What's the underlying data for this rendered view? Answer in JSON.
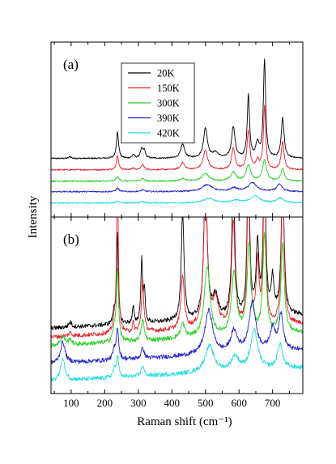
{
  "chart_data": {
    "type": "line",
    "xlabel": "Raman shift (cm⁻¹)",
    "ylabel": "Intensity",
    "xlim": [
      40,
      790
    ],
    "xticks": [
      100,
      200,
      300,
      400,
      500,
      600,
      700
    ],
    "grid": false,
    "legend": {
      "placement": "top-left inside panel (a)"
    },
    "series": [
      {
        "name": "20K",
        "color": "#000000"
      },
      {
        "name": "150K",
        "color": "#e8202a"
      },
      {
        "name": "300K",
        "color": "#22d022"
      },
      {
        "name": "390K",
        "color": "#2222cc"
      },
      {
        "name": "420K",
        "color": "#22dddd"
      }
    ],
    "panels": [
      {
        "label": "(a)",
        "ylim": [
          0,
          1
        ],
        "curves": [
          {
            "series": "20K",
            "baseline": 0.335,
            "baseline_slope": 0.0,
            "peaks": [
              [
                97,
                0.01,
                4
              ],
              [
                238,
                0.15,
                4
              ],
              [
                285,
                0.02,
                4
              ],
              [
                310,
                0.05,
                5
              ],
              [
                318,
                0.04,
                4
              ],
              [
                432,
                0.08,
                7
              ],
              [
                500,
                0.17,
                7
              ],
              [
                530,
                0.03,
                10
              ],
              [
                583,
                0.18,
                6
              ],
              [
                628,
                0.36,
                4
              ],
              [
                655,
                0.08,
                6
              ],
              [
                676,
                0.56,
                4
              ],
              [
                730,
                0.23,
                5
              ]
            ]
          },
          {
            "series": "150K",
            "baseline": 0.27,
            "baseline_slope": 0.0,
            "peaks": [
              [
                238,
                0.08,
                4
              ],
              [
                285,
                0.01,
                4
              ],
              [
                313,
                0.03,
                5
              ],
              [
                432,
                0.04,
                7
              ],
              [
                500,
                0.11,
                8
              ],
              [
                583,
                0.12,
                6
              ],
              [
                628,
                0.22,
                5
              ],
              [
                655,
                0.05,
                6
              ],
              [
                676,
                0.36,
                4
              ],
              [
                730,
                0.16,
                5
              ]
            ]
          },
          {
            "series": "300K",
            "baseline": 0.205,
            "baseline_slope": 0.0,
            "peaks": [
              [
                238,
                0.025,
                5
              ],
              [
                313,
                0.015,
                6
              ],
              [
                432,
                0.015,
                8
              ],
              [
                500,
                0.045,
                12
              ],
              [
                583,
                0.05,
                9
              ],
              [
                628,
                0.09,
                8
              ],
              [
                676,
                0.12,
                7
              ],
              [
                730,
                0.07,
                6
              ]
            ]
          },
          {
            "series": "390K",
            "baseline": 0.145,
            "baseline_slope": 0.0,
            "peaks": [
              [
                238,
                0.02,
                5
              ],
              [
                313,
                0.01,
                6
              ],
              [
                505,
                0.04,
                18
              ],
              [
                585,
                0.02,
                12
              ],
              [
                640,
                0.05,
                15
              ],
              [
                720,
                0.04,
                10
              ]
            ]
          },
          {
            "series": "420K",
            "baseline": 0.08,
            "baseline_slope": 0.0,
            "peaks": [
              [
                238,
                0.012,
                5
              ],
              [
                313,
                0.008,
                6
              ],
              [
                510,
                0.025,
                20
              ],
              [
                590,
                0.015,
                15
              ],
              [
                648,
                0.04,
                16
              ],
              [
                722,
                0.03,
                12
              ]
            ]
          }
        ]
      },
      {
        "label": "(b)",
        "ylim": [
          0,
          1
        ],
        "curves": [
          {
            "series": "20K",
            "baseline": 0.37,
            "baseline_slope": 0.0001,
            "peaks": [
              [
                97,
                0.03,
                5
              ],
              [
                228,
                0.07,
                4
              ],
              [
                238,
                0.5,
                3
              ],
              [
                285,
                0.09,
                3
              ],
              [
                310,
                0.35,
                3
              ],
              [
                318,
                0.18,
                3
              ],
              [
                432,
                0.6,
                5
              ],
              [
                500,
                0.8,
                6
              ],
              [
                530,
                0.12,
                10
              ],
              [
                583,
                0.8,
                5
              ],
              [
                628,
                1.0,
                4
              ],
              [
                655,
                0.4,
                5
              ],
              [
                676,
                1.0,
                4
              ],
              [
                700,
                0.2,
                5
              ],
              [
                730,
                0.8,
                5
              ]
            ]
          },
          {
            "series": "150K",
            "baseline": 0.32,
            "baseline_slope": 0.0001,
            "peaks": [
              [
                97,
                0.02,
                5
              ],
              [
                228,
                0.05,
                4
              ],
              [
                238,
                0.9,
                3
              ],
              [
                285,
                0.05,
                3
              ],
              [
                313,
                0.3,
                4
              ],
              [
                432,
                0.3,
                6
              ],
              [
                500,
                0.75,
                7
              ],
              [
                530,
                0.15,
                10
              ],
              [
                583,
                0.6,
                6
              ],
              [
                628,
                0.9,
                4
              ],
              [
                655,
                0.35,
                5
              ],
              [
                676,
                0.95,
                4
              ],
              [
                730,
                0.8,
                5
              ]
            ]
          },
          {
            "series": "300K",
            "baseline": 0.27,
            "baseline_slope": 0.0001,
            "peaks": [
              [
                75,
                0.05,
                8
              ],
              [
                97,
                0.03,
                5
              ],
              [
                228,
                0.06,
                5
              ],
              [
                238,
                0.4,
                4
              ],
              [
                313,
                0.12,
                5
              ],
              [
                432,
                0.08,
                8
              ],
              [
                505,
                0.4,
                10
              ],
              [
                585,
                0.35,
                9
              ],
              [
                630,
                0.5,
                7
              ],
              [
                676,
                0.55,
                6
              ],
              [
                730,
                0.5,
                6
              ]
            ]
          },
          {
            "series": "390K",
            "baseline": 0.17,
            "baseline_slope": 0.0001,
            "peaks": [
              [
                75,
                0.12,
                8
              ],
              [
                228,
                0.05,
                5
              ],
              [
                238,
                0.18,
                4
              ],
              [
                313,
                0.06,
                5
              ],
              [
                510,
                0.25,
                14
              ],
              [
                585,
                0.12,
                12
              ],
              [
                640,
                0.28,
                12
              ],
              [
                700,
                0.12,
                10
              ],
              [
                725,
                0.2,
                8
              ]
            ]
          },
          {
            "series": "420K",
            "baseline": 0.07,
            "baseline_slope": 0.0001,
            "peaks": [
              [
                75,
                0.12,
                8
              ],
              [
                228,
                0.04,
                5
              ],
              [
                238,
                0.12,
                4
              ],
              [
                313,
                0.06,
                5
              ],
              [
                512,
                0.15,
                16
              ],
              [
                588,
                0.08,
                13
              ],
              [
                645,
                0.22,
                13
              ],
              [
                722,
                0.14,
                9
              ]
            ]
          }
        ]
      }
    ]
  }
}
